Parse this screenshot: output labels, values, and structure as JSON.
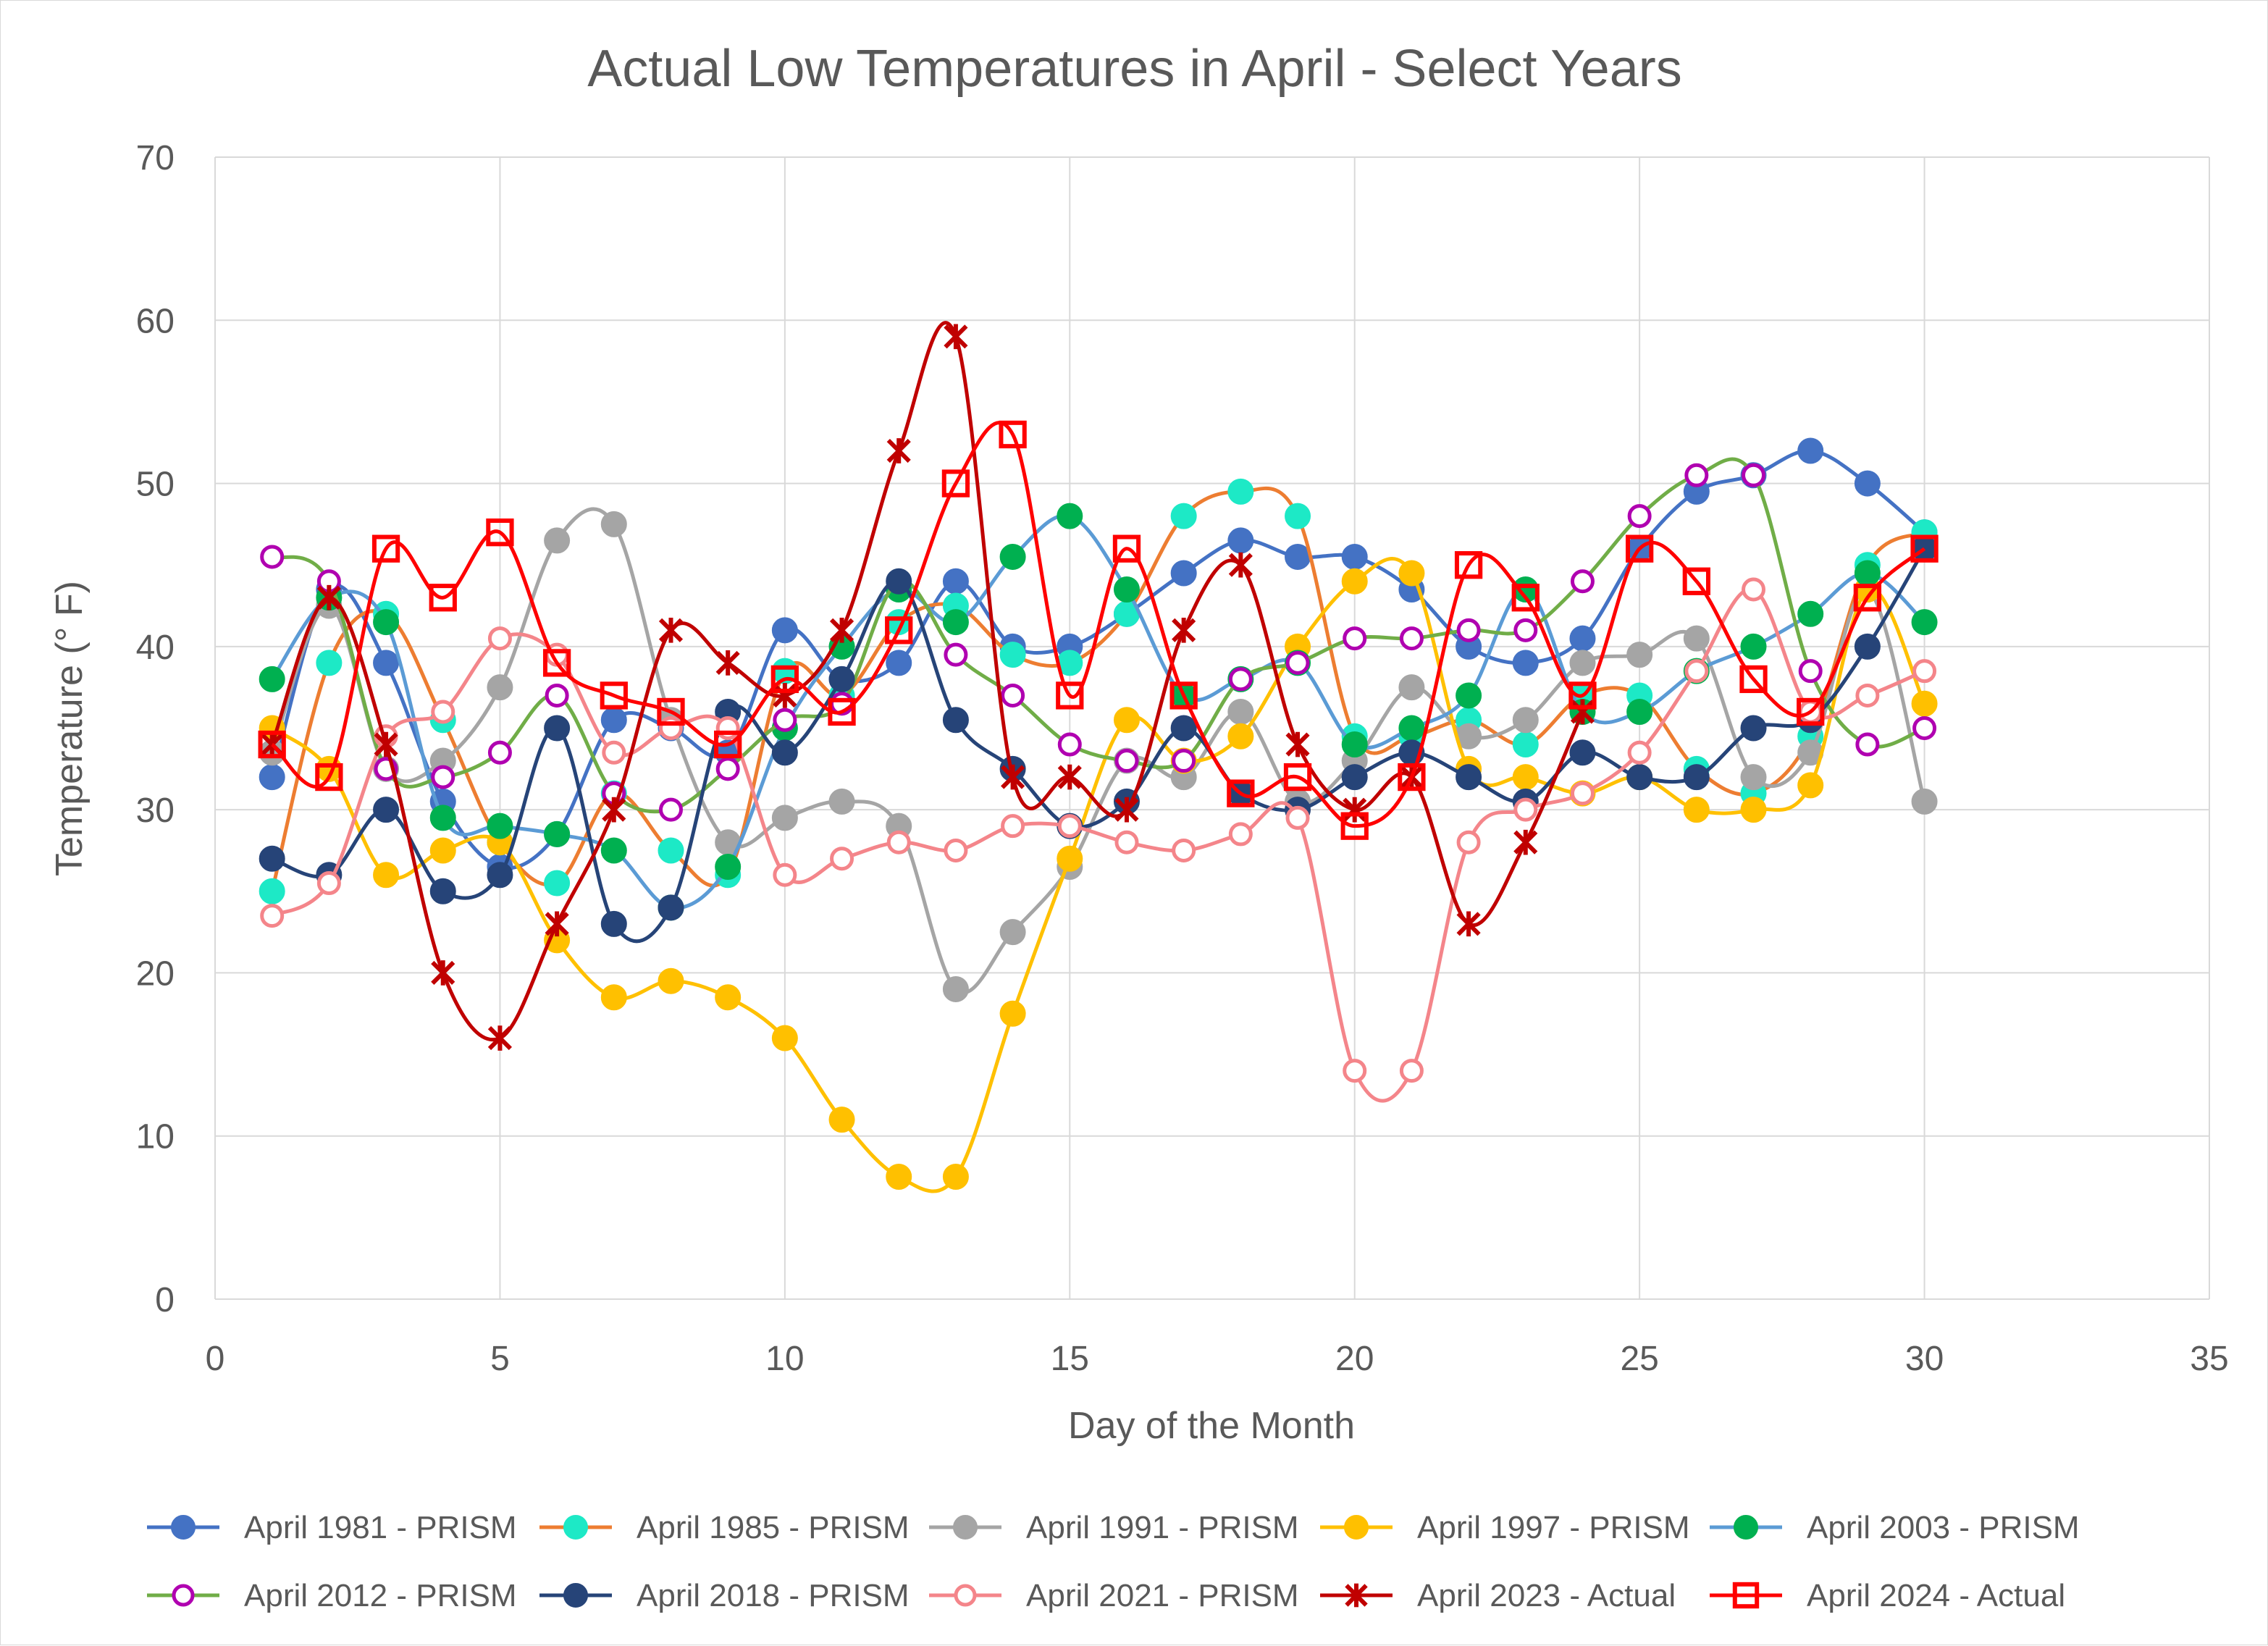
{
  "chart_data": {
    "type": "line",
    "title": "Actual Low Temperatures in April - Select Years",
    "xlabel": "Day of the Month",
    "ylabel": "Temperature (° F)",
    "xlim": [
      0,
      35
    ],
    "ylim": [
      0,
      70
    ],
    "xticks": [
      0,
      5,
      10,
      15,
      20,
      25,
      30,
      35
    ],
    "yticks": [
      0,
      10,
      20,
      30,
      40,
      50,
      60,
      70
    ],
    "grid": true,
    "legend_position": "bottom",
    "x": [
      1,
      2,
      3,
      4,
      5,
      6,
      7,
      8,
      9,
      10,
      11,
      12,
      13,
      14,
      15,
      16,
      17,
      18,
      19,
      20,
      21,
      22,
      23,
      24,
      25,
      26,
      27,
      28,
      29,
      30
    ],
    "series": [
      {
        "name": "April 1981 - PRISM",
        "color": "#4472c4",
        "marker": "circle-filled",
        "values": [
          32,
          43.5,
          39,
          30.5,
          26.5,
          28.5,
          35.5,
          35,
          33.5,
          41,
          38,
          39,
          44,
          40,
          40,
          42,
          44.5,
          46.5,
          45.5,
          45.5,
          43.5,
          40,
          39,
          40.5,
          46,
          49.5,
          50.5,
          52,
          50,
          47
        ]
      },
      {
        "name": "April 1985 - PRISM",
        "color": "#ed7d31",
        "line_color": "#ed7d31",
        "marker_color": "#1de9c6",
        "marker": "circle-filled",
        "values": [
          25,
          39,
          42,
          35.5,
          28,
          25.5,
          31,
          27.5,
          26,
          38.5,
          37,
          41.5,
          42.5,
          39.5,
          39,
          42,
          48,
          49.5,
          48,
          34.5,
          34.5,
          35.5,
          34,
          37,
          37,
          32.5,
          31,
          34.5,
          45,
          47
        ]
      },
      {
        "name": "April 1991 - PRISM",
        "color": "#a5a5a5",
        "marker": "circle-filled",
        "values": [
          33.5,
          42.5,
          32.5,
          33,
          37.5,
          46.5,
          47.5,
          35.5,
          28,
          29.5,
          30.5,
          29,
          19,
          22.5,
          26.5,
          33,
          32,
          36,
          30.5,
          33,
          37.5,
          34.5,
          35.5,
          39,
          39.5,
          40.5,
          32,
          33.5,
          43.5,
          30.5
        ]
      },
      {
        "name": "April 1997 - PRISM",
        "color": "#ffc000",
        "marker": "circle-filled",
        "values": [
          35,
          32.5,
          26,
          27.5,
          28,
          22,
          18.5,
          19.5,
          18.5,
          16,
          11,
          7.5,
          7.5,
          17.5,
          27,
          35.5,
          33,
          34.5,
          40,
          44,
          44.5,
          32.5,
          32,
          31,
          32,
          30,
          30,
          31.5,
          43.5,
          36.5
        ]
      },
      {
        "name": "April 2003 - PRISM",
        "color": "#5b9bd5",
        "line_color": "#5b9bd5",
        "marker_color": "#00b050",
        "marker": "circle-filled",
        "values": [
          38,
          43,
          41.5,
          29.5,
          29,
          28.5,
          27.5,
          24,
          26.5,
          35,
          40,
          43.5,
          41.5,
          45.5,
          48,
          43.5,
          37,
          38,
          39,
          34,
          35,
          37,
          43.5,
          36,
          36,
          38.5,
          40,
          42,
          44.5,
          41.5
        ]
      },
      {
        "name": "April 2012 - PRISM",
        "color": "#70ad47",
        "line_color": "#70ad47",
        "marker_color": "#b000b0",
        "marker": "circle-open",
        "values": [
          45.5,
          44,
          32.5,
          32,
          33.5,
          37,
          31,
          30,
          32.5,
          35.5,
          36.5,
          44,
          39.5,
          37,
          34,
          33,
          33,
          38,
          39,
          40.5,
          40.5,
          41,
          41,
          44,
          48,
          50.5,
          50.5,
          38.5,
          34,
          35
        ]
      },
      {
        "name": "April 2018 - PRISM",
        "color": "#264478",
        "marker": "circle-filled",
        "values": [
          27,
          26,
          30,
          25,
          26,
          35,
          23,
          24,
          36,
          33.5,
          38,
          44,
          35.5,
          32.5,
          29,
          30.5,
          35,
          31,
          30,
          32,
          33.5,
          32,
          30.5,
          33.5,
          32,
          32,
          35,
          35.5,
          40,
          46
        ]
      },
      {
        "name": "April 2021 - PRISM",
        "color": "#f4858a",
        "marker": "circle-open",
        "values": [
          23.5,
          25.5,
          34.5,
          36,
          40.5,
          39.5,
          33.5,
          35,
          35,
          26,
          27,
          28,
          27.5,
          29,
          29,
          28,
          27.5,
          28.5,
          29.5,
          14,
          14,
          28,
          30,
          31,
          33.5,
          38.5,
          43.5,
          36,
          37,
          38.5
        ]
      },
      {
        "name": "April 2023 - Actual",
        "color": "#c00000",
        "marker": "star",
        "values": [
          34,
          43,
          34,
          20,
          16,
          23,
          30,
          41,
          39,
          37,
          41,
          52,
          59,
          32,
          32,
          30,
          41,
          45,
          34,
          30,
          32,
          23,
          28,
          36,
          null,
          null,
          null,
          null,
          null,
          null
        ]
      },
      {
        "name": "April 2024 - Actual",
        "color": "#ff0000",
        "marker": "square-open",
        "values": [
          34,
          32,
          46,
          43,
          47,
          39,
          37,
          36,
          34,
          38,
          36,
          41,
          50,
          53,
          37,
          46,
          37,
          31,
          32,
          29,
          32,
          45,
          43,
          37,
          46,
          44,
          38,
          36,
          43,
          46
        ]
      }
    ]
  }
}
